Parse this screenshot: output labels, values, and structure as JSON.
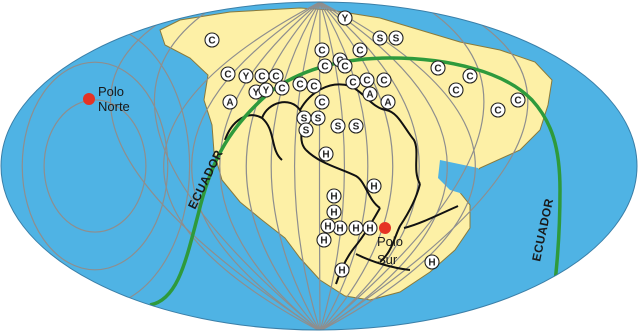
{
  "colors": {
    "ocean": "#4fb3e4",
    "land": "#fdf0a6",
    "coast": "#8a7a3a",
    "grid": "#8e8e8e",
    "equator": "#2e9a3c",
    "pole": "#e53324",
    "marker_fill": "#ffffff",
    "marker_stroke": "#222222",
    "suture": "#111111"
  },
  "poles": {
    "north": {
      "label_line1": "Polo",
      "label_line2": "Norte"
    },
    "south": {
      "label_line1": "Polo",
      "label_line2": "Sur"
    }
  },
  "equator": {
    "left_label": "ECUADOR",
    "right_label": "ECUADOR"
  },
  "markers": [
    "Y",
    "C",
    "C",
    "S",
    "C",
    "S",
    "C",
    "C",
    "C",
    "C",
    "C",
    "C",
    "A",
    "C",
    "Y",
    "C",
    "C",
    "Y",
    "Y",
    "C",
    "C",
    "C",
    "C",
    "C",
    "C",
    "C",
    "C",
    "A",
    "A",
    "C",
    "S",
    "S",
    "S",
    "S",
    "S",
    "H",
    "H",
    "H",
    "H",
    "H",
    "H",
    "H",
    "H",
    "H",
    "H",
    "H"
  ]
}
